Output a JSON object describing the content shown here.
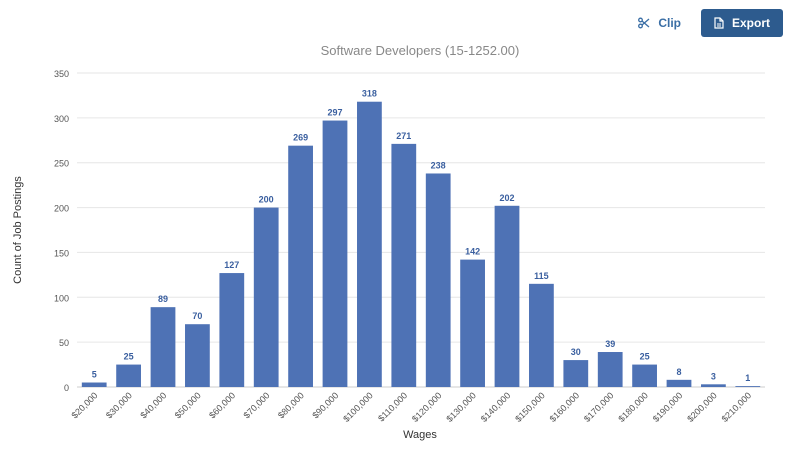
{
  "toolbar": {
    "clip_label": "Clip",
    "export_label": "Export",
    "clip_icon": "scissors-icon",
    "export_icon": "document-icon"
  },
  "colors": {
    "bar": "#4e72b5",
    "data_label": "#3a5f9f",
    "grid": "#e6e6e6",
    "title": "#888888",
    "button_primary": "#2d5b8e",
    "button_text_secondary": "#3a6ea5"
  },
  "chart_data": {
    "type": "bar",
    "title": "Software Developers (15-1252.00)",
    "xlabel": "Wages",
    "ylabel": "Count of Job Postings",
    "categories": [
      "$20,000",
      "$30,000",
      "$40,000",
      "$50,000",
      "$60,000",
      "$70,000",
      "$80,000",
      "$90,000",
      "$100,000",
      "$110,000",
      "$120,000",
      "$130,000",
      "$140,000",
      "$150,000",
      "$160,000",
      "$170,000",
      "$180,000",
      "$190,000",
      "$200,000",
      "$210,000"
    ],
    "values": [
      5,
      25,
      89,
      70,
      127,
      200,
      269,
      297,
      318,
      271,
      238,
      142,
      202,
      115,
      30,
      39,
      25,
      8,
      3,
      1
    ],
    "ylim": [
      0,
      350
    ],
    "yticks": [
      0,
      50,
      100,
      150,
      200,
      250,
      300,
      350
    ],
    "grid": true,
    "data_labels": true
  }
}
